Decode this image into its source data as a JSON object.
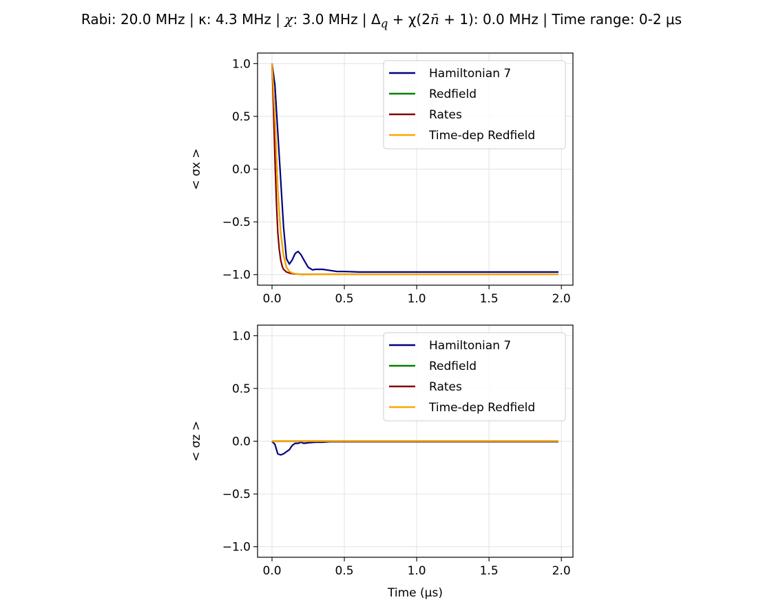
{
  "figure": {
    "title_parts": {
      "rabi": "Rabi: 20.0 MHz",
      "kappa": "κ: 4.3 MHz",
      "chi_label": "χ",
      "chi_value": ": 3.0 MHz",
      "detuning_delta": "Δ",
      "detuning_sub": "q",
      "detuning_rest": " + χ(2",
      "detuning_nbar": "n̄",
      "detuning_end": " + 1)",
      "detuning_value": ": 0.0 MHz",
      "time_range": "Time range: 0-2 μs",
      "separator": " | "
    }
  },
  "chart_data": [
    {
      "type": "line",
      "ylabel": "< σx >",
      "xlabel": "",
      "xlim": [
        -0.1,
        2.08
      ],
      "ylim": [
        -1.1,
        1.1
      ],
      "x_ticks": [
        0.0,
        0.5,
        1.0,
        1.5,
        2.0
      ],
      "x_tick_labels": [
        "0.0",
        "0.5",
        "1.0",
        "1.5",
        "2.0"
      ],
      "y_ticks": [
        1.0,
        0.5,
        0.0,
        -0.5,
        -1.0
      ],
      "y_tick_labels": [
        "1.0",
        "0.5",
        "0.0",
        "−0.5",
        "−1.0"
      ],
      "grid": true,
      "legend_position": "top-right",
      "series": [
        {
          "name": "Hamiltonian 7",
          "color": "#000080",
          "x": [
            0,
            0.02,
            0.04,
            0.06,
            0.08,
            0.1,
            0.12,
            0.14,
            0.16,
            0.18,
            0.2,
            0.22,
            0.25,
            0.28,
            0.3,
            0.35,
            0.4,
            0.45,
            0.5,
            0.6,
            0.8,
            1.0,
            1.5,
            1.98
          ],
          "y": [
            1.0,
            0.8,
            0.35,
            -0.1,
            -0.55,
            -0.85,
            -0.9,
            -0.86,
            -0.8,
            -0.78,
            -0.81,
            -0.86,
            -0.93,
            -0.955,
            -0.95,
            -0.95,
            -0.96,
            -0.97,
            -0.97,
            -0.975,
            -0.975,
            -0.975,
            -0.975,
            -0.975
          ]
        },
        {
          "name": "Redfield",
          "color": "#008000",
          "x": [
            0,
            0.02,
            0.04,
            0.06,
            0.08,
            0.1,
            0.12,
            0.14,
            0.16,
            0.2,
            0.3,
            0.5,
            1.0,
            1.5,
            1.98
          ],
          "y": [
            1.0,
            0.5,
            -0.2,
            -0.6,
            -0.82,
            -0.93,
            -0.97,
            -0.985,
            -0.992,
            -0.997,
            -0.998,
            -0.998,
            -0.998,
            -0.998,
            -0.998
          ]
        },
        {
          "name": "Rates",
          "color": "#800000",
          "x": [
            0,
            0.01,
            0.02,
            0.03,
            0.04,
            0.05,
            0.06,
            0.07,
            0.08,
            0.1,
            0.12,
            0.15,
            0.2,
            0.3,
            0.5,
            1.0,
            1.5,
            1.98
          ],
          "y": [
            1.0,
            0.6,
            0.1,
            -0.3,
            -0.6,
            -0.76,
            -0.86,
            -0.92,
            -0.95,
            -0.975,
            -0.985,
            -0.993,
            -0.997,
            -0.998,
            -0.998,
            -0.998,
            -0.998,
            -0.998
          ]
        },
        {
          "name": "Time-dep Redfield",
          "color": "#ffa500",
          "x": [
            0,
            0.02,
            0.04,
            0.06,
            0.08,
            0.1,
            0.12,
            0.14,
            0.16,
            0.2,
            0.3,
            0.5,
            1.0,
            1.5,
            1.98
          ],
          "y": [
            1.0,
            0.5,
            -0.2,
            -0.6,
            -0.82,
            -0.93,
            -0.97,
            -0.985,
            -0.992,
            -0.997,
            -0.998,
            -0.998,
            -0.998,
            -0.998,
            -0.998
          ]
        }
      ]
    },
    {
      "type": "line",
      "ylabel": "< σz >",
      "xlabel": "Time (μs)",
      "xlim": [
        -0.1,
        2.08
      ],
      "ylim": [
        -1.1,
        1.1
      ],
      "x_ticks": [
        0.0,
        0.5,
        1.0,
        1.5,
        2.0
      ],
      "x_tick_labels": [
        "0.0",
        "0.5",
        "1.0",
        "1.5",
        "2.0"
      ],
      "y_ticks": [
        1.0,
        0.5,
        0.0,
        -0.5,
        -1.0
      ],
      "y_tick_labels": [
        "1.0",
        "0.5",
        "0.0",
        "−0.5",
        "−1.0"
      ],
      "grid": true,
      "legend_position": "top-right",
      "series": [
        {
          "name": "Hamiltonian 7",
          "color": "#000080",
          "x": [
            0,
            0.02,
            0.04,
            0.06,
            0.08,
            0.1,
            0.12,
            0.14,
            0.16,
            0.18,
            0.2,
            0.22,
            0.25,
            0.3,
            0.35,
            0.4,
            0.5,
            1.0,
            1.5,
            1.98
          ],
          "y": [
            0.0,
            -0.03,
            -0.12,
            -0.13,
            -0.12,
            -0.1,
            -0.08,
            -0.04,
            -0.02,
            -0.02,
            -0.01,
            -0.02,
            -0.015,
            -0.01,
            -0.01,
            -0.005,
            -0.005,
            -0.005,
            -0.005,
            -0.005
          ]
        },
        {
          "name": "Redfield",
          "color": "#008000",
          "x": [
            0,
            0.5,
            1.0,
            1.5,
            1.98
          ],
          "y": [
            0.0,
            0.0,
            0.0,
            0.0,
            0.0
          ]
        },
        {
          "name": "Rates",
          "color": "#800000",
          "x": [
            0,
            0.5,
            1.0,
            1.5,
            1.98
          ],
          "y": [
            0.0,
            0.0,
            0.0,
            0.0,
            0.0
          ]
        },
        {
          "name": "Time-dep Redfield",
          "color": "#ffa500",
          "x": [
            0,
            0.5,
            1.0,
            1.5,
            1.98
          ],
          "y": [
            0.0,
            0.0,
            0.0,
            0.0,
            0.0
          ]
        }
      ]
    }
  ]
}
